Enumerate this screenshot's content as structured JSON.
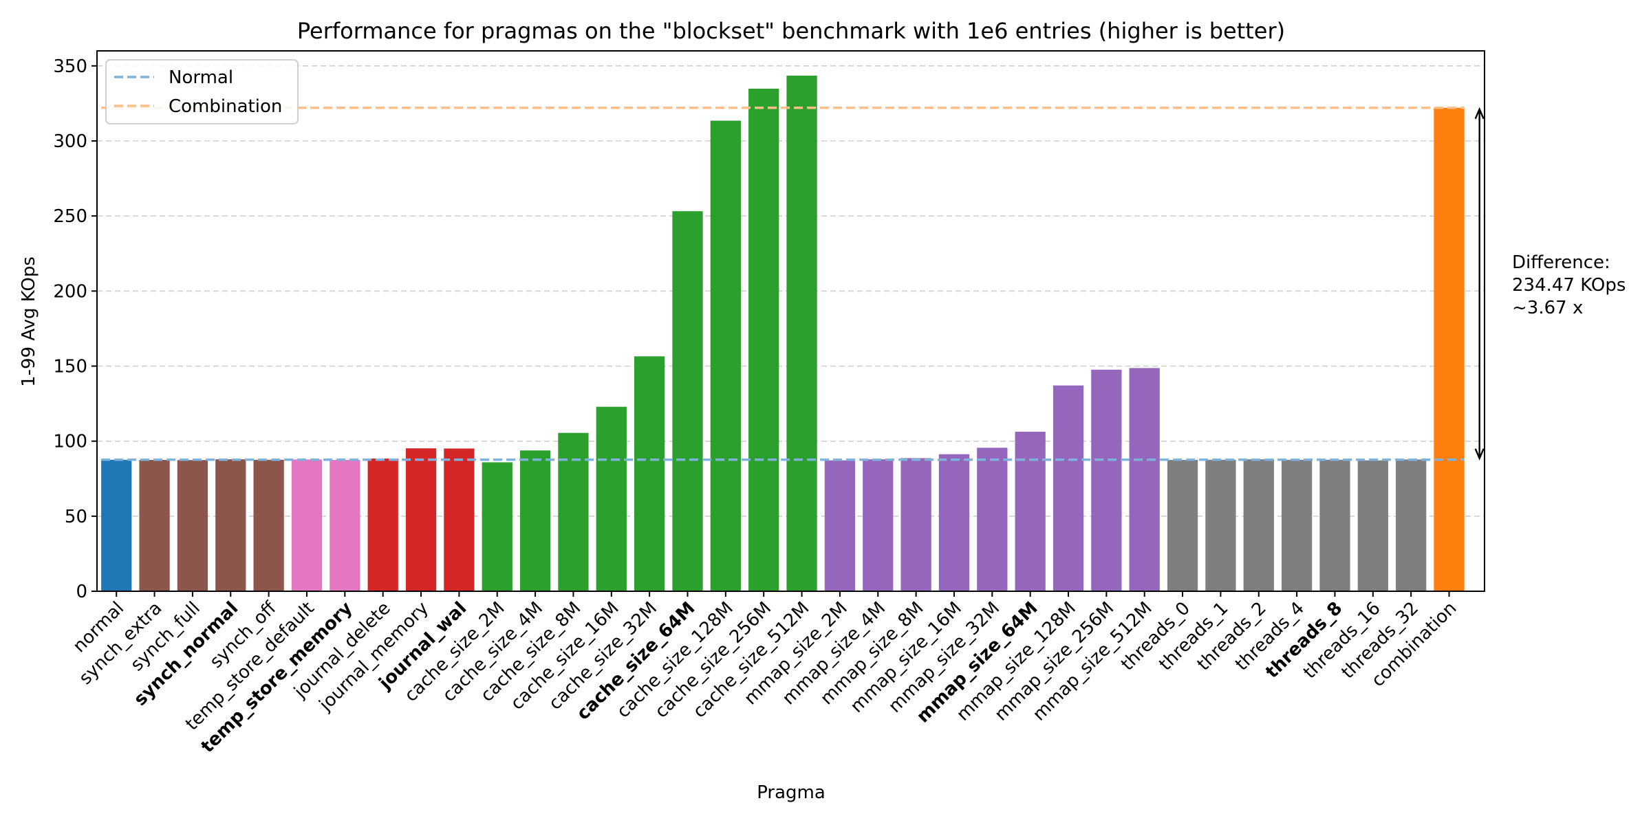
{
  "chart_data": {
    "type": "bar",
    "title": "Performance for pragmas on the \"blockset\" benchmark with 1e6 entries (higher is better)",
    "xlabel": "Pragma",
    "ylabel": "1-99 Avg KOps",
    "ylim": [
      0,
      360
    ],
    "yticks": [
      0,
      50,
      100,
      150,
      200,
      250,
      300,
      350
    ],
    "grid": "horizontal dashed",
    "legend_position": "top-left",
    "categories": [
      "normal",
      "synch_extra",
      "synch_full",
      "synch_normal",
      "synch_off",
      "temp_store_default",
      "temp_store_memory",
      "journal_delete",
      "journal_memory",
      "journal_wal",
      "cache_size_2M",
      "cache_size_4M",
      "cache_size_8M",
      "cache_size_16M",
      "cache_size_32M",
      "cache_size_64M",
      "cache_size_128M",
      "cache_size_256M",
      "cache_size_512M",
      "mmap_size_2M",
      "mmap_size_4M",
      "mmap_size_8M",
      "mmap_size_16M",
      "mmap_size_32M",
      "mmap_size_64M",
      "mmap_size_128M",
      "mmap_size_256M",
      "mmap_size_512M",
      "threads_0",
      "threads_1",
      "threads_2",
      "threads_4",
      "threads_8",
      "threads_16",
      "threads_32",
      "combination"
    ],
    "values": [
      87.6,
      87.5,
      87.4,
      87.9,
      87.6,
      87.8,
      87.5,
      88.4,
      95.2,
      95.1,
      85.9,
      93.8,
      105.5,
      122.9,
      156.5,
      253.2,
      313.5,
      334.8,
      343.5,
      87.2,
      87.9,
      88.7,
      91.3,
      95.6,
      106.3,
      137.1,
      147.6,
      148.7,
      87.5,
      87.6,
      87.9,
      87.6,
      87.6,
      87.2,
      87.8,
      322.1
    ],
    "bold_labels": [
      "synch_normal",
      "temp_store_memory",
      "journal_wal",
      "cache_size_64M",
      "mmap_size_64M",
      "threads_8"
    ],
    "bar_colors": [
      "#1f77b4",
      "#8c564b",
      "#8c564b",
      "#8c564b",
      "#8c564b",
      "#e377c2",
      "#e377c2",
      "#d62728",
      "#d62728",
      "#d62728",
      "#2ca02c",
      "#2ca02c",
      "#2ca02c",
      "#2ca02c",
      "#2ca02c",
      "#2ca02c",
      "#2ca02c",
      "#2ca02c",
      "#2ca02c",
      "#9467bd",
      "#9467bd",
      "#9467bd",
      "#9467bd",
      "#9467bd",
      "#9467bd",
      "#9467bd",
      "#9467bd",
      "#9467bd",
      "#7f7f7f",
      "#7f7f7f",
      "#7f7f7f",
      "#7f7f7f",
      "#7f7f7f",
      "#7f7f7f",
      "#7f7f7f",
      "#ff7f0e"
    ],
    "reference_lines": [
      {
        "name": "Normal",
        "value": 87.63,
        "color": "#7fb2db"
      },
      {
        "name": "Combination",
        "value": 322.1,
        "color": "#ffbf87"
      }
    ],
    "annotation": {
      "lines": [
        "Difference:",
        "234.47 KOps",
        "~3.67 x"
      ]
    }
  }
}
